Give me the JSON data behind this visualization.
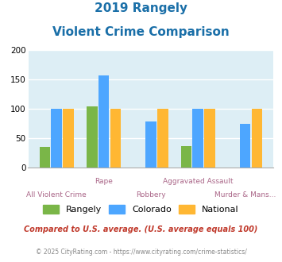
{
  "title_line1": "2019 Rangely",
  "title_line2": "Violent Crime Comparison",
  "categories": [
    "All Violent Crime",
    "Rape",
    "Robbery",
    "Aggravated Assault",
    "Murder & Mans..."
  ],
  "category_labels_row1": [
    "",
    "Rape",
    "",
    "Aggravated Assault",
    ""
  ],
  "category_labels_row2": [
    "All Violent Crime",
    "",
    "Robbery",
    "",
    "Murder & Mans..."
  ],
  "rangely": [
    35,
    104,
    0,
    37,
    0
  ],
  "colorado": [
    100,
    157,
    78,
    100,
    75
  ],
  "national": [
    100,
    100,
    100,
    100,
    100
  ],
  "rangely_color": "#7ab648",
  "colorado_color": "#4da6ff",
  "national_color": "#ffb733",
  "ylim": [
    0,
    200
  ],
  "yticks": [
    0,
    50,
    100,
    150,
    200
  ],
  "bg_color": "#ddeef5",
  "legend_labels": [
    "Rangely",
    "Colorado",
    "National"
  ],
  "footnote1": "Compared to U.S. average. (U.S. average equals 100)",
  "footnote2": "© 2025 CityRating.com - https://www.cityrating.com/crime-statistics/",
  "title_color": "#1a6fa8",
  "footnote1_color": "#c0392b",
  "footnote2_color": "#888888",
  "xlabel_color": "#aa6688"
}
